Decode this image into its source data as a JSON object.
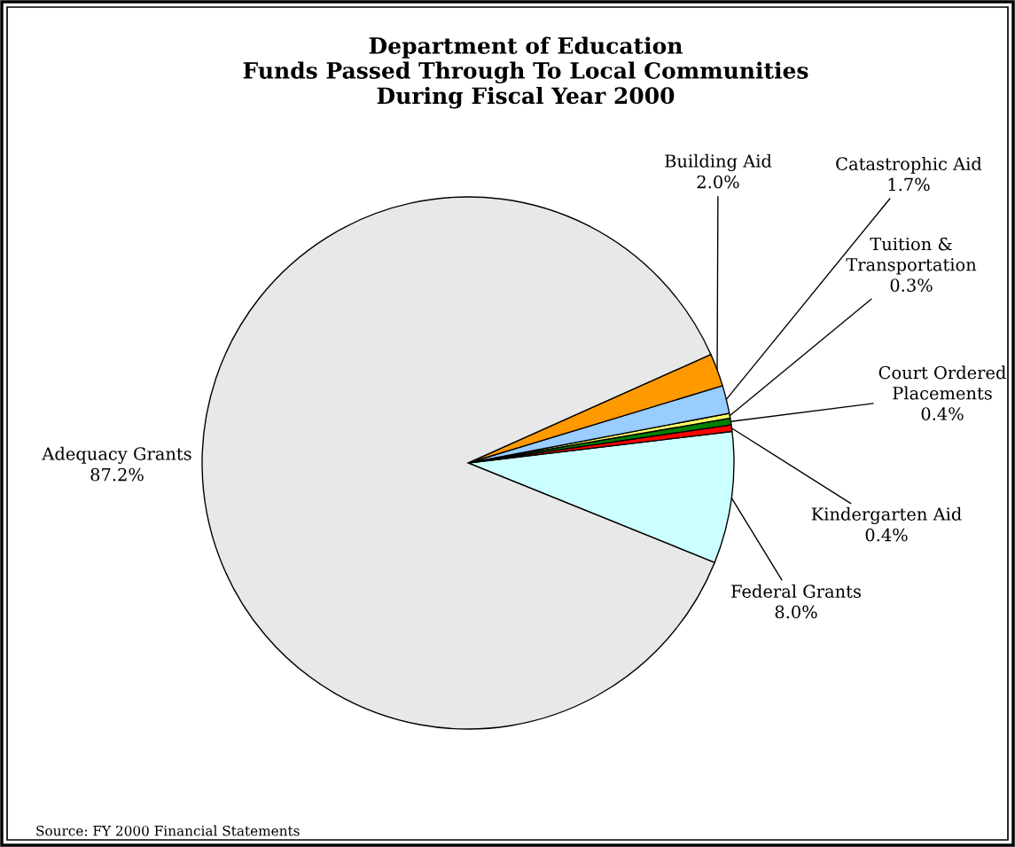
{
  "chart_data": {
    "type": "pie",
    "title": "Department of Education\nFunds Passed Through To Local Communities\nDuring Fiscal Year 2000",
    "categories": [
      "Federal Grants",
      "Kindergarten Aid",
      "Court Ordered Placements",
      "Tuition & Transportation",
      "Catastrophic Aid",
      "Building Aid",
      "Adequacy Grants"
    ],
    "values": [
      8.0,
      0.4,
      0.4,
      0.3,
      1.7,
      2.0,
      87.2
    ],
    "value_labels": [
      "8.0%",
      "0.4%",
      "0.4%",
      "0.3%",
      "1.7%",
      "2.0%",
      "87.2%"
    ],
    "colors": [
      "#ccffff",
      "#ff0000",
      "#008000",
      "#ffff66",
      "#99ccff",
      "#ff9900",
      "#e8e8e8"
    ],
    "annotations": [
      "Source: FY 2000 Financial Statements"
    ]
  }
}
